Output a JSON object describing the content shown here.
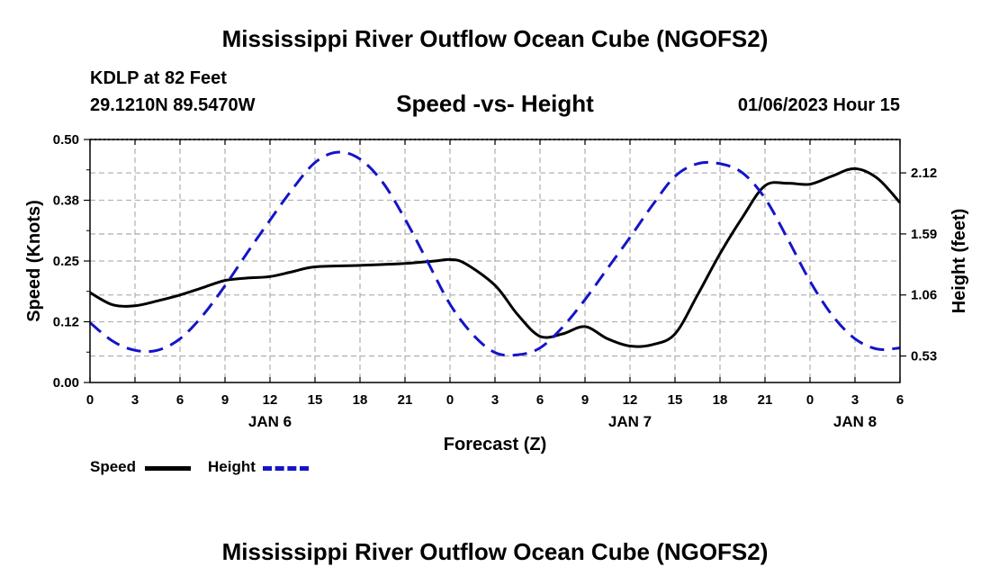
{
  "header": {
    "title": "Mississippi River Outflow Ocean Cube (NGOFS2)",
    "station": "KDLP at 82 Feet",
    "coords": "29.1210N  89.5470W",
    "subtitle": "Speed -vs- Height",
    "datetime": "01/06/2023 Hour 15"
  },
  "footer": {
    "title": "Mississippi River Outflow Ocean Cube (NGOFS2)"
  },
  "legend": {
    "speed_label": "Speed",
    "height_label": "Height"
  },
  "colors": {
    "speed": "#000000",
    "height": "#1414c8",
    "grid": "#b4b4b4"
  },
  "chart_data": {
    "type": "line",
    "title": "Speed -vs- Height",
    "xlabel": "Forecast (Z)",
    "ylabel": "Speed (Knots)",
    "y2label": "Height (feet)",
    "xlim": [
      0,
      54
    ],
    "ylim": [
      0,
      0.5
    ],
    "y2lim": [
      0.3,
      2.41
    ],
    "x_ticks": [
      {
        "x": 0,
        "label": "0"
      },
      {
        "x": 3,
        "label": "3"
      },
      {
        "x": 6,
        "label": "6"
      },
      {
        "x": 9,
        "label": "9"
      },
      {
        "x": 12,
        "label": "12"
      },
      {
        "x": 15,
        "label": "15"
      },
      {
        "x": 18,
        "label": "18"
      },
      {
        "x": 21,
        "label": "21"
      },
      {
        "x": 24,
        "label": "0"
      },
      {
        "x": 27,
        "label": "3"
      },
      {
        "x": 30,
        "label": "6"
      },
      {
        "x": 33,
        "label": "9"
      },
      {
        "x": 36,
        "label": "12"
      },
      {
        "x": 39,
        "label": "15"
      },
      {
        "x": 42,
        "label": "18"
      },
      {
        "x": 45,
        "label": "21"
      },
      {
        "x": 48,
        "label": "0"
      },
      {
        "x": 51,
        "label": "3"
      },
      {
        "x": 54,
        "label": "6"
      }
    ],
    "day_labels": [
      {
        "x": 12,
        "label": "JAN 6"
      },
      {
        "x": 36,
        "label": "JAN 7"
      },
      {
        "x": 51,
        "label": "JAN 8"
      }
    ],
    "y_ticks": [
      {
        "v": 0.0,
        "label": "0.00"
      },
      {
        "v": 0.125,
        "label": "0.12"
      },
      {
        "v": 0.25,
        "label": "0.25"
      },
      {
        "v": 0.375,
        "label": "0.38"
      },
      {
        "v": 0.5,
        "label": "0.50"
      }
    ],
    "y2_ticks": [
      {
        "v": 0.53,
        "label": "0.53"
      },
      {
        "v": 1.06,
        "label": "1.06"
      },
      {
        "v": 1.59,
        "label": "1.59"
      },
      {
        "v": 2.12,
        "label": "2.12"
      }
    ],
    "series": [
      {
        "name": "Speed",
        "axis": "left",
        "style": "solid",
        "x": [
          0,
          1.5,
          3,
          4.5,
          6,
          7.5,
          9,
          10.5,
          12,
          13.5,
          15,
          18,
          21,
          23,
          24,
          25,
          27,
          28.5,
          30,
          31.5,
          33,
          34.5,
          36,
          37.5,
          39,
          40.5,
          42,
          43.5,
          45,
          46.5,
          48,
          49.5,
          51,
          52.5,
          54
        ],
        "values": [
          0.185,
          0.16,
          0.158,
          0.168,
          0.18,
          0.195,
          0.21,
          0.215,
          0.218,
          0.228,
          0.238,
          0.241,
          0.245,
          0.25,
          0.253,
          0.245,
          0.2,
          0.14,
          0.095,
          0.1,
          0.115,
          0.09,
          0.075,
          0.078,
          0.1,
          0.18,
          0.265,
          0.34,
          0.405,
          0.41,
          0.408,
          0.425,
          0.44,
          0.42,
          0.37
        ]
      },
      {
        "name": "Height",
        "axis": "right",
        "style": "dashed",
        "x": [
          0,
          1.5,
          3,
          4.5,
          6,
          7.5,
          9,
          10.5,
          12,
          13.5,
          15,
          16.5,
          18,
          19.5,
          21,
          22.5,
          24,
          25.5,
          27,
          28.5,
          30,
          31.5,
          33,
          34.5,
          36,
          37.5,
          39,
          40.5,
          42,
          43.5,
          45,
          46.5,
          48,
          49.5,
          51,
          52.5,
          54
        ],
        "values": [
          0.82,
          0.66,
          0.58,
          0.58,
          0.68,
          0.88,
          1.14,
          1.43,
          1.71,
          1.98,
          2.21,
          2.3,
          2.24,
          2.04,
          1.72,
          1.35,
          0.98,
          0.72,
          0.56,
          0.54,
          0.6,
          0.78,
          1.02,
          1.29,
          1.56,
          1.84,
          2.09,
          2.2,
          2.2,
          2.12,
          1.9,
          1.55,
          1.18,
          0.88,
          0.68,
          0.59,
          0.6
        ]
      }
    ]
  }
}
